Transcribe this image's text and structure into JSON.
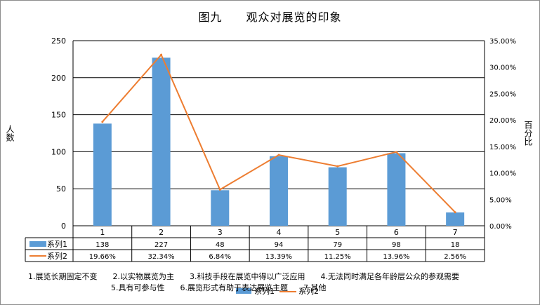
{
  "chart_data": {
    "type": "bar",
    "title": "图九　　观众对展览的印象",
    "ylabel_left": "人数",
    "ylabel_right": "百分比",
    "categories": [
      "1",
      "2",
      "3",
      "4",
      "5",
      "6",
      "7"
    ],
    "series": [
      {
        "name": "系列1",
        "type": "bar",
        "axis": "left",
        "values": [
          138,
          227,
          48,
          94,
          79,
          98,
          18
        ],
        "table_labels": [
          "138",
          "227",
          "48",
          "94",
          "79",
          "98",
          "18"
        ]
      },
      {
        "name": "系列2",
        "type": "line",
        "axis": "right",
        "values": [
          19.66,
          32.34,
          6.84,
          13.39,
          11.25,
          13.96,
          2.56
        ],
        "table_labels": [
          "19.66%",
          "32.34%",
          "6.84%",
          "13.39%",
          "11.25%",
          "13.96%",
          "2.56%"
        ]
      }
    ],
    "ylim_left": [
      0,
      250
    ],
    "yticks_left": [
      "250",
      "200",
      "150",
      "100",
      "50",
      "0"
    ],
    "ylim_right": [
      0,
      35
    ],
    "yticks_right": [
      "35.00%",
      "30.00%",
      "25.00%",
      "20.00%",
      "15.00%",
      "10.00%",
      "5.00%",
      "0.00%"
    ],
    "grid": true,
    "legend": [
      "系列1",
      "系列2"
    ],
    "legend_placement": "bottom",
    "colors": {
      "bar": "#5b9bd5",
      "line": "#ed7d31"
    }
  },
  "notes": [
    "1.展览长期固定不变",
    "2.以实物展览为主",
    "3.科技手段在展览中得以广泛应用",
    "4.无法同时满足各年龄层公众的参观需要",
    "5.具有可参与性",
    "6.展览形式有助于表达展览主题",
    "7.其他"
  ]
}
